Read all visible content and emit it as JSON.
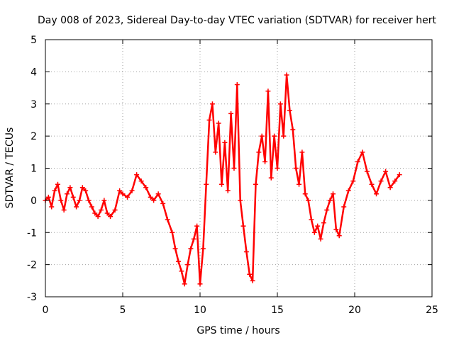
{
  "chart_data": {
    "type": "line",
    "title": "Day 008 of 2023, Sidereal Day-to-day VTEC variation (SDTVAR) for receiver hert",
    "xlabel": "GPS time / hours",
    "ylabel": "SDTVAR / TECUs",
    "xlim": [
      0,
      25
    ],
    "ylim": [
      -3,
      5
    ],
    "xticks": [
      0,
      5,
      10,
      15,
      20,
      25
    ],
    "yticks": [
      -3,
      -2,
      -1,
      0,
      1,
      2,
      3,
      4,
      5
    ],
    "xtick_labels": [
      "0",
      "5",
      "10",
      "15",
      "20",
      "25"
    ],
    "ytick_labels": [
      "-3",
      "-2",
      "-1",
      "0",
      "1",
      "2",
      "3",
      "4",
      "5"
    ],
    "grid": true,
    "legend": "none",
    "series": [
      {
        "name": "sdtvar",
        "color": "#ff0000",
        "marker": "plus",
        "x": [
          0.0,
          0.2,
          0.4,
          0.6,
          0.8,
          1.0,
          1.2,
          1.4,
          1.6,
          1.8,
          2.0,
          2.2,
          2.4,
          2.6,
          2.8,
          3.0,
          3.2,
          3.4,
          3.6,
          3.8,
          4.0,
          4.2,
          4.5,
          4.8,
          5.0,
          5.3,
          5.6,
          5.9,
          6.2,
          6.5,
          6.8,
          7.0,
          7.3,
          7.6,
          7.9,
          8.2,
          8.4,
          8.6,
          8.8,
          9.0,
          9.2,
          9.4,
          9.6,
          9.8,
          10.0,
          10.2,
          10.4,
          10.6,
          10.8,
          11.0,
          11.2,
          11.4,
          11.6,
          11.8,
          12.0,
          12.2,
          12.4,
          12.6,
          12.8,
          13.0,
          13.2,
          13.4,
          13.6,
          13.8,
          14.0,
          14.2,
          14.4,
          14.6,
          14.8,
          15.0,
          15.2,
          15.4,
          15.6,
          15.8,
          16.0,
          16.2,
          16.4,
          16.6,
          16.8,
          17.0,
          17.2,
          17.4,
          17.6,
          17.8,
          18.0,
          18.2,
          18.4,
          18.6,
          18.8,
          19.0,
          19.3,
          19.6,
          19.9,
          20.2,
          20.5,
          20.8,
          21.1,
          21.4,
          21.7,
          22.0,
          22.3,
          22.6,
          22.9
        ],
        "values": [
          0.0,
          0.1,
          -0.2,
          0.3,
          0.5,
          0.0,
          -0.3,
          0.2,
          0.4,
          0.1,
          -0.2,
          0.0,
          0.4,
          0.3,
          0.0,
          -0.2,
          -0.4,
          -0.5,
          -0.3,
          0.0,
          -0.4,
          -0.5,
          -0.3,
          0.3,
          0.2,
          0.1,
          0.3,
          0.8,
          0.6,
          0.4,
          0.1,
          0.0,
          0.2,
          -0.1,
          -0.6,
          -1.0,
          -1.5,
          -1.9,
          -2.2,
          -2.6,
          -2.0,
          -1.5,
          -1.2,
          -0.8,
          -2.6,
          -1.5,
          0.5,
          2.5,
          3.0,
          1.5,
          2.4,
          0.5,
          1.8,
          0.3,
          2.7,
          1.0,
          3.6,
          0.0,
          -0.8,
          -1.6,
          -2.3,
          -2.5,
          0.5,
          1.5,
          2.0,
          1.2,
          3.4,
          0.7,
          2.0,
          1.0,
          3.0,
          2.0,
          3.9,
          2.8,
          2.2,
          1.0,
          0.5,
          1.5,
          0.2,
          0.0,
          -0.6,
          -1.0,
          -0.8,
          -1.2,
          -0.7,
          -0.3,
          0.0,
          0.2,
          -0.9,
          -1.1,
          -0.2,
          0.3,
          0.6,
          1.2,
          1.5,
          0.9,
          0.5,
          0.2,
          0.6,
          0.9,
          0.4,
          0.6,
          0.8
        ]
      }
    ]
  }
}
